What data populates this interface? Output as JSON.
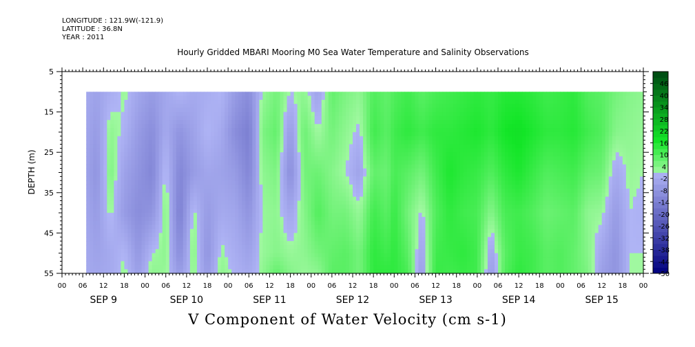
{
  "header": {
    "longitude": "LONGITUDE : 121.9W(-121.9)",
    "latitude": "LATITUDE : 36.8N",
    "year": "YEAR : 2011",
    "title": "Hourly Gridded MBARI Mooring M0 Sea Water Temperature and Salinity Observations"
  },
  "variable_title": "V Component of Water Velocity (cm s-1)",
  "chart_data": {
    "type": "heatmap",
    "title": "Hourly Gridded MBARI Mooring M0 Sea Water Temperature and Salinity Observations",
    "subtitle": "V Component of Water Velocity (cm s-1)",
    "ylabel": "DEPTH (m)",
    "xlabel": "",
    "y_axis": {
      "ticks": [
        5,
        15,
        25,
        35,
        45,
        55
      ],
      "range": [
        5,
        55
      ],
      "inverted": true
    },
    "y_data_range": [
      10,
      55
    ],
    "x_axis": {
      "hour_ticks": [
        "00",
        "06",
        "12",
        "18",
        "00",
        "06",
        "12",
        "18",
        "00",
        "06",
        "12",
        "18",
        "00",
        "06",
        "12",
        "18",
        "00",
        "06",
        "12",
        "18",
        "00",
        "06",
        "12",
        "18",
        "00",
        "06",
        "12",
        "18",
        "00"
      ],
      "day_labels": [
        "SEP  9",
        "SEP 10",
        "SEP 11",
        "SEP 12",
        "SEP 13",
        "SEP 14",
        "SEP 15"
      ],
      "range_hours": [
        0,
        168
      ]
    },
    "x_data_start_hour": 7,
    "colorbar": {
      "labels": [
        "46",
        "40",
        "34",
        "28",
        "22",
        "16",
        "10",
        "4",
        "-2",
        "-8",
        "-14",
        "-20",
        "-26",
        "-32",
        "-38",
        "-44",
        "-50"
      ],
      "min": -50,
      "max": 52,
      "step": 3
    },
    "profile_hours": [
      7,
      10,
      14,
      18,
      22,
      26,
      30,
      34,
      38,
      42,
      46,
      50,
      54,
      58,
      62,
      66,
      70,
      74,
      78,
      82,
      86,
      90,
      94,
      96,
      100,
      104,
      108,
      112,
      116,
      120,
      124,
      128,
      132,
      136,
      140,
      144,
      148,
      152,
      156,
      160,
      164,
      168
    ],
    "profile_depths": [
      10,
      20,
      30,
      40,
      50,
      55
    ],
    "profiles": [
      [
        -2,
        -3,
        -4,
        -3,
        -2,
        -2
      ],
      [
        -4,
        -6,
        -8,
        -6,
        -4,
        -3
      ],
      [
        -1,
        3,
        5,
        2,
        -2,
        -2
      ],
      [
        2,
        0,
        -4,
        -6,
        1,
        2
      ],
      [
        -3,
        -6,
        -8,
        -10,
        -7,
        -5
      ],
      [
        -6,
        -10,
        -12,
        -8,
        1,
        3
      ],
      [
        -3,
        -2,
        2,
        4,
        3,
        2
      ],
      [
        1,
        -8,
        -12,
        -14,
        -10,
        -6
      ],
      [
        -2,
        -4,
        -6,
        2,
        4,
        3
      ],
      [
        -1,
        1,
        -3,
        -6,
        -8,
        -6
      ],
      [
        1,
        -2,
        -4,
        -2,
        2,
        3
      ],
      [
        -6,
        -10,
        -6,
        -3,
        -1,
        0
      ],
      [
        -10,
        -14,
        -12,
        -8,
        -4,
        -2
      ],
      [
        2,
        5,
        3,
        2,
        2,
        3
      ],
      [
        6,
        8,
        5,
        3,
        4,
        8
      ],
      [
        1,
        -6,
        -10,
        -3,
        2,
        4
      ],
      [
        3,
        7,
        6,
        4,
        3,
        2
      ],
      [
        -4,
        1,
        7,
        10,
        6,
        3
      ],
      [
        8,
        6,
        4,
        6,
        8,
        9
      ],
      [
        5,
        3,
        1,
        6,
        9,
        9
      ],
      [
        3,
        0,
        -4,
        2,
        6,
        6
      ],
      [
        10,
        12,
        8,
        12,
        14,
        14
      ],
      [
        8,
        9,
        7,
        9,
        12,
        14
      ],
      [
        10,
        12,
        11,
        13,
        14,
        14
      ],
      [
        12,
        14,
        9,
        6,
        9,
        11
      ],
      [
        9,
        12,
        6,
        0,
        -4,
        -6
      ],
      [
        11,
        14,
        12,
        10,
        12,
        13
      ],
      [
        12,
        14,
        16,
        14,
        13,
        12
      ],
      [
        13,
        15,
        14,
        12,
        14,
        13
      ],
      [
        14,
        16,
        13,
        11,
        12,
        12
      ],
      [
        13,
        14,
        10,
        4,
        -4,
        -6
      ],
      [
        15,
        17,
        14,
        11,
        9,
        10
      ],
      [
        15,
        18,
        16,
        12,
        13,
        14
      ],
      [
        14,
        16,
        13,
        10,
        12,
        12
      ],
      [
        12,
        14,
        10,
        7,
        9,
        9
      ],
      [
        13,
        14,
        11,
        8,
        10,
        10
      ],
      [
        14,
        15,
        12,
        9,
        8,
        8
      ],
      [
        10,
        12,
        8,
        3,
        4,
        5
      ],
      [
        9,
        10,
        7,
        2,
        -3,
        -5
      ],
      [
        6,
        4,
        -2,
        -6,
        -8,
        -8
      ],
      [
        4,
        3,
        2,
        1,
        1,
        1
      ],
      [
        3,
        2,
        1,
        0,
        1,
        1
      ]
    ]
  }
}
